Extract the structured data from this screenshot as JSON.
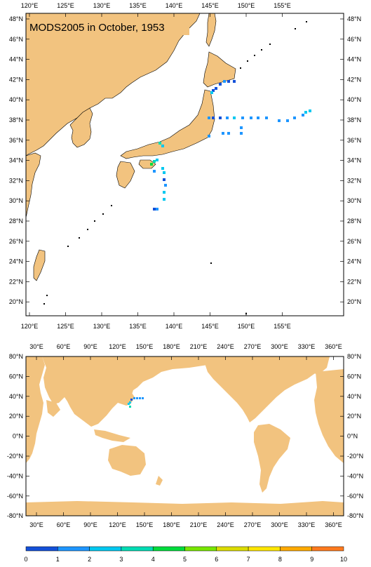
{
  "title": "MODS2005 in October, 1953",
  "top_map": {
    "lon_labels": [
      "120°E",
      "125°E",
      "130°E",
      "135°E",
      "140°E",
      "145°E",
      "150°E",
      "155°E"
    ],
    "lat_labels": [
      "48°N",
      "46°N",
      "44°N",
      "42°N",
      "40°N",
      "38°N",
      "36°N",
      "34°N",
      "32°N",
      "30°N",
      "28°N",
      "26°N",
      "24°N",
      "22°N",
      "20°N"
    ]
  },
  "bottom_map": {
    "lon_labels": [
      "30°E",
      "60°E",
      "90°E",
      "120°E",
      "150°E",
      "180°E",
      "210°E",
      "240°E",
      "270°E",
      "300°E",
      "330°E",
      "360°E"
    ],
    "lat_labels": [
      "80°N",
      "60°N",
      "40°N",
      "20°N",
      "0°N",
      "-20°N",
      "-40°N",
      "-60°N",
      "-80°N"
    ]
  },
  "colorbar": {
    "labels": [
      "0",
      "1",
      "2",
      "3",
      "4",
      "5",
      "6",
      "7",
      "8",
      "9",
      "10"
    ],
    "colors": [
      "#1450d8",
      "#1e96ff",
      "#00c8f0",
      "#00dcb4",
      "#00dc3c",
      "#78e600",
      "#dcdc00",
      "#ffe600",
      "#ffaa00",
      "#ff7a1e"
    ]
  },
  "colors": {
    "land": "#f2c37f",
    "frame": "#000000",
    "ocean": "#ffffff"
  }
}
